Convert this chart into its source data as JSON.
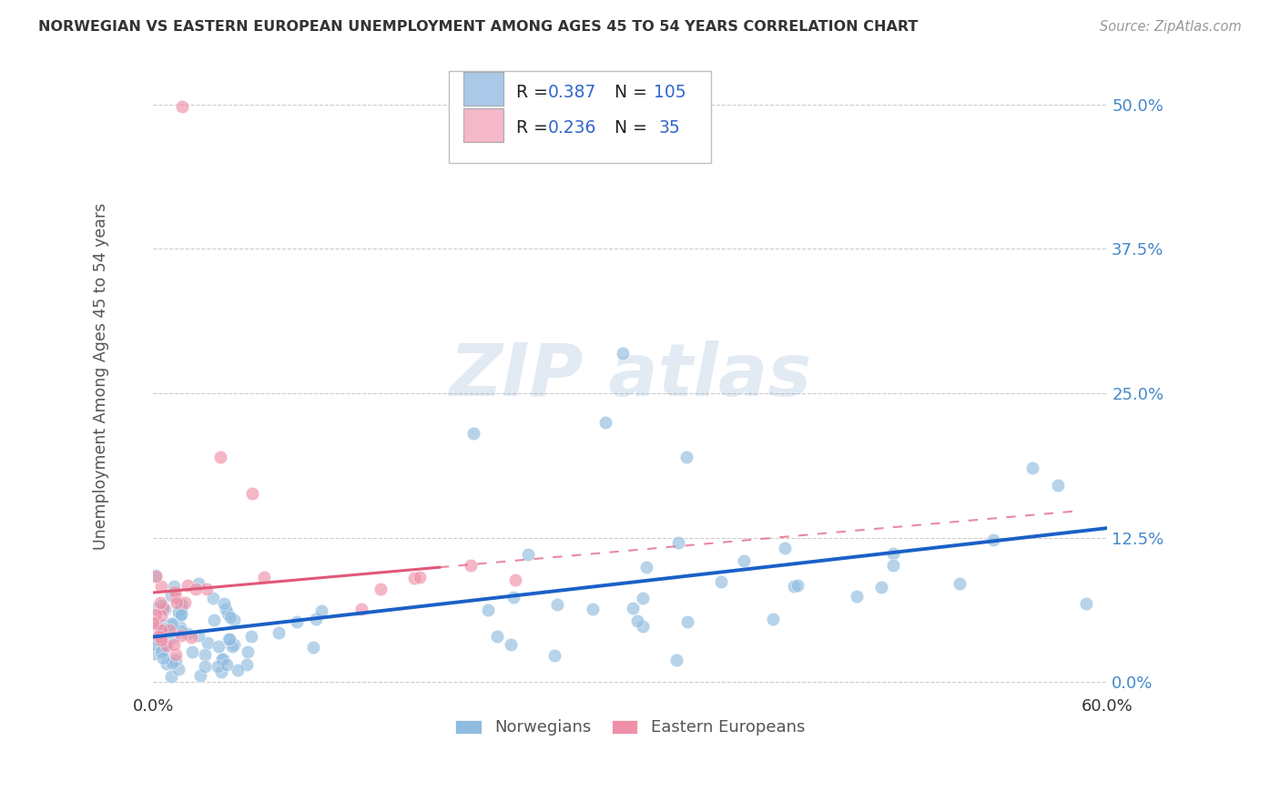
{
  "title": "NORWEGIAN VS EASTERN EUROPEAN UNEMPLOYMENT AMONG AGES 45 TO 54 YEARS CORRELATION CHART",
  "source": "Source: ZipAtlas.com",
  "ylabel": "Unemployment Among Ages 45 to 54 years",
  "ytick_labels": [
    "0.0%",
    "12.5%",
    "25.0%",
    "37.5%",
    "50.0%"
  ],
  "ytick_values": [
    0.0,
    0.125,
    0.25,
    0.375,
    0.5
  ],
  "xlim": [
    0.0,
    0.6
  ],
  "ylim": [
    -0.01,
    0.54
  ],
  "blue_color": "#aac8e8",
  "pink_color": "#f4b8c8",
  "blue_line_color": "#1a60c8",
  "pink_line_color": "#e05878",
  "blue_marker_color": "#90bce0",
  "pink_marker_color": "#f090a8",
  "grid_color": "#cccccc",
  "text_color_dark": "#333333",
  "text_color_blue": "#3366cc",
  "tick_color_blue": "#4488cc",
  "watermark_color": "#e0e8f0"
}
